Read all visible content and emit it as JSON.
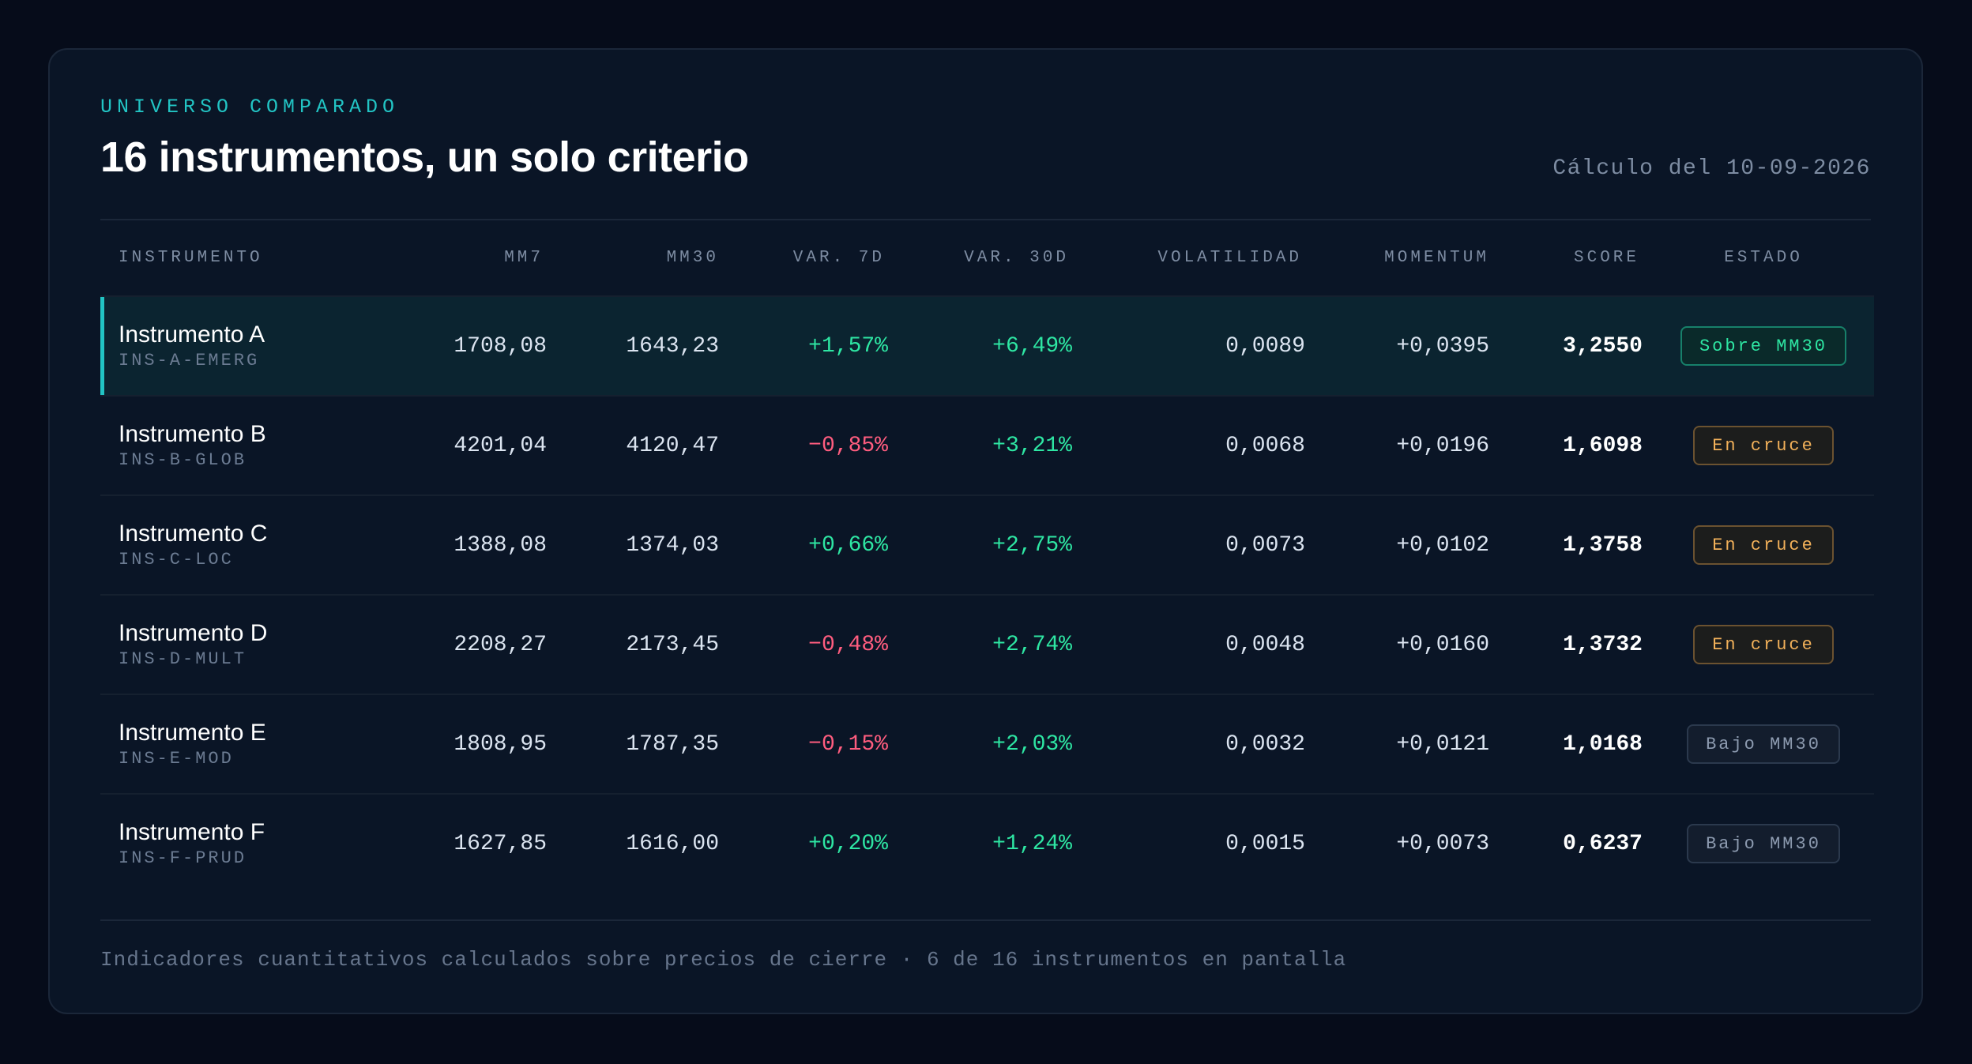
{
  "header": {
    "eyebrow": "UNIVERSO COMPARADO",
    "title": "16 instrumentos, un solo criterio",
    "calc_date": "Cálculo del 10-09-2026"
  },
  "table": {
    "columns": [
      "INSTRUMENTO",
      "MM7",
      "MM30",
      "VAR. 7D",
      "VAR. 30D",
      "VOLATILIDAD",
      "MOMENTUM",
      "SCORE",
      "ESTADO"
    ],
    "rows": [
      {
        "name": "Instrumento A",
        "code": "INS-A-EMERG",
        "mm7": "1708,08",
        "mm30": "1643,23",
        "var7": "+1,57%",
        "var30": "+6,49%",
        "vol": "0,0089",
        "mom": "+0,0395",
        "score": "3,2550",
        "estado": "Sobre MM30"
      },
      {
        "name": "Instrumento B",
        "code": "INS-B-GLOB",
        "mm7": "4201,04",
        "mm30": "4120,47",
        "var7": "−0,85%",
        "var30": "+3,21%",
        "vol": "0,0068",
        "mom": "+0,0196",
        "score": "1,6098",
        "estado": "En cruce"
      },
      {
        "name": "Instrumento C",
        "code": "INS-C-LOC",
        "mm7": "1388,08",
        "mm30": "1374,03",
        "var7": "+0,66%",
        "var30": "+2,75%",
        "vol": "0,0073",
        "mom": "+0,0102",
        "score": "1,3758",
        "estado": "En cruce"
      },
      {
        "name": "Instrumento D",
        "code": "INS-D-MULT",
        "mm7": "2208,27",
        "mm30": "2173,45",
        "var7": "−0,48%",
        "var30": "+2,74%",
        "vol": "0,0048",
        "mom": "+0,0160",
        "score": "1,3732",
        "estado": "En cruce"
      },
      {
        "name": "Instrumento E",
        "code": "INS-E-MOD",
        "mm7": "1808,95",
        "mm30": "1787,35",
        "var7": "−0,15%",
        "var30": "+2,03%",
        "vol": "0,0032",
        "mom": "+0,0121",
        "score": "1,0168",
        "estado": "Bajo MM30"
      },
      {
        "name": "Instrumento F",
        "code": "INS-F-PRUD",
        "mm7": "1627,85",
        "mm30": "1616,00",
        "var7": "+0,20%",
        "var30": "+1,24%",
        "vol": "0,0015",
        "mom": "+0,0073",
        "score": "0,6237",
        "estado": "Bajo MM30"
      }
    ]
  },
  "footer": {
    "note": "Indicadores cuantitativos calculados sobre precios de cierre · 6 de 16 instrumentos en pantalla"
  },
  "colors": {
    "accent": "#22c4c4",
    "positive": "#2ee6a3",
    "negative": "#ff5d7f",
    "warning": "#f2b15a"
  }
}
